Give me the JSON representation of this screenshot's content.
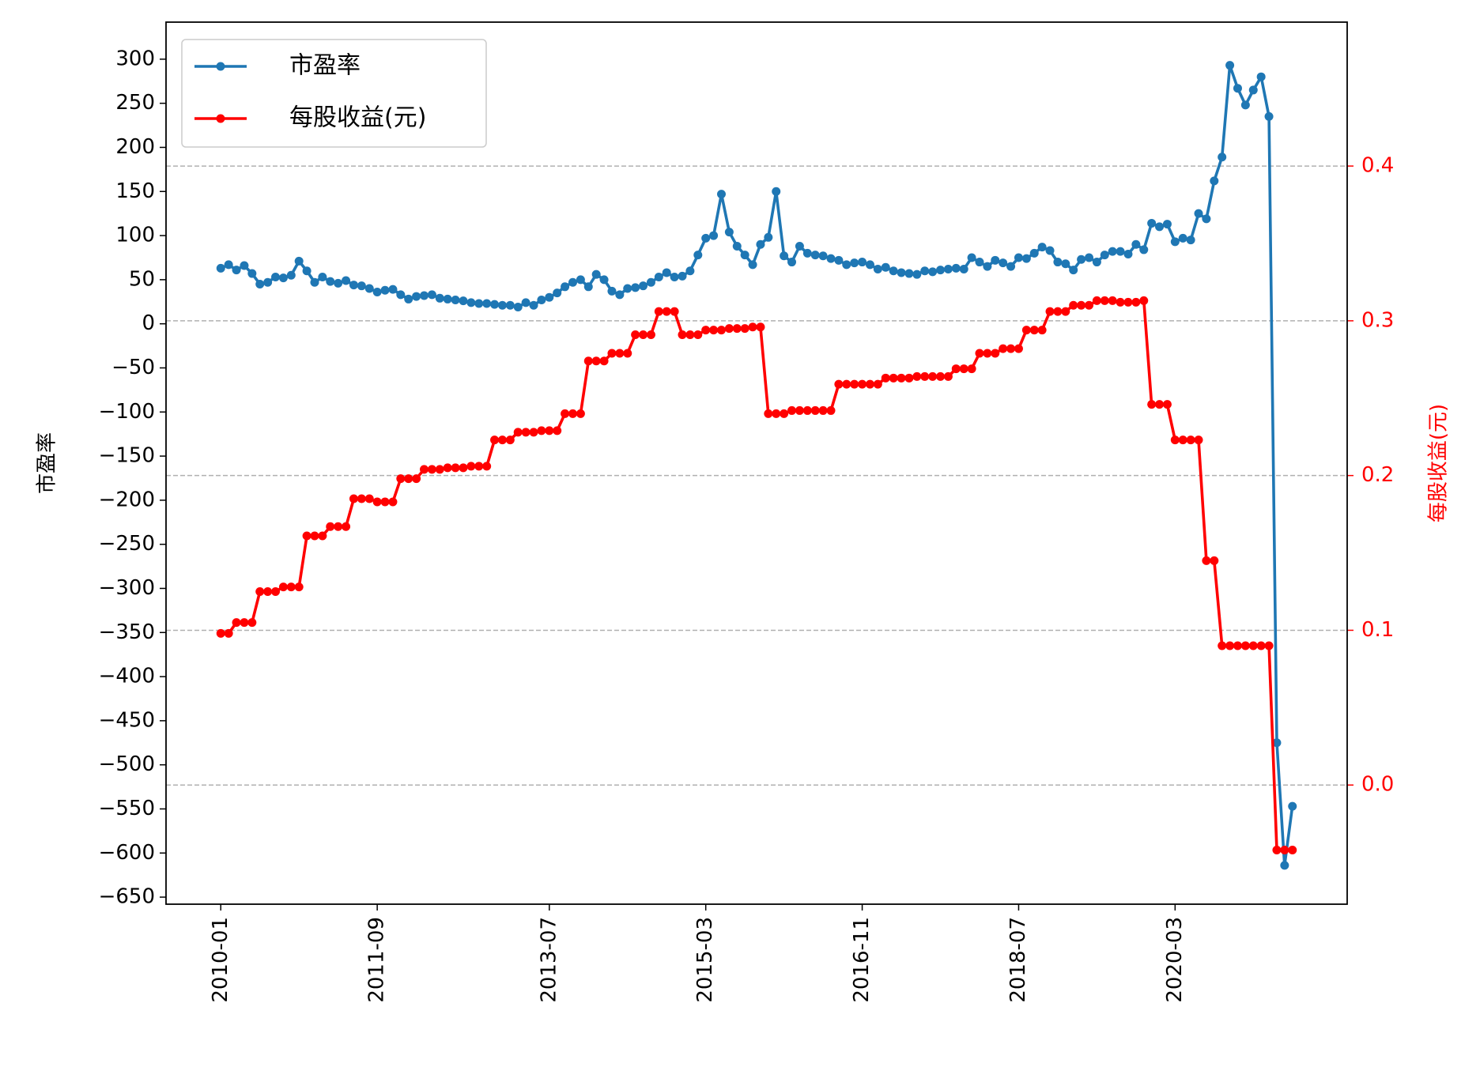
{
  "chart_data": {
    "type": "line",
    "y_label": "市盈率",
    "y2_label": "每股收益(元)",
    "x": [
      "2010-01",
      "2010-02",
      "2010-03",
      "2010-04",
      "2010-05",
      "2010-06",
      "2010-07",
      "2010-08",
      "2010-09",
      "2010-10",
      "2010-11",
      "2010-12",
      "2011-01",
      "2011-02",
      "2011-03",
      "2011-04",
      "2011-05",
      "2011-06",
      "2011-07",
      "2011-08",
      "2011-09",
      "2011-10",
      "2011-11",
      "2011-12",
      "2012-01",
      "2012-02",
      "2012-03",
      "2012-04",
      "2012-05",
      "2012-06",
      "2012-07",
      "2012-08",
      "2012-09",
      "2012-10",
      "2012-11",
      "2012-12",
      "2013-01",
      "2013-02",
      "2013-03",
      "2013-04",
      "2013-05",
      "2013-06",
      "2013-07",
      "2013-08",
      "2013-09",
      "2013-10",
      "2013-11",
      "2013-12",
      "2014-01",
      "2014-02",
      "2014-03",
      "2014-04",
      "2014-05",
      "2014-06",
      "2014-07",
      "2014-08",
      "2014-09",
      "2014-10",
      "2014-11",
      "2014-12",
      "2015-01",
      "2015-02",
      "2015-03",
      "2015-04",
      "2015-05",
      "2015-06",
      "2015-07",
      "2015-08",
      "2015-09",
      "2015-10",
      "2015-11",
      "2015-12",
      "2016-01",
      "2016-02",
      "2016-03",
      "2016-04",
      "2016-05",
      "2016-06",
      "2016-07",
      "2016-08",
      "2016-09",
      "2016-10",
      "2016-11",
      "2016-12",
      "2017-01",
      "2017-02",
      "2017-03",
      "2017-04",
      "2017-05",
      "2017-06",
      "2017-07",
      "2017-08",
      "2017-09",
      "2017-10",
      "2017-11",
      "2017-12",
      "2018-01",
      "2018-02",
      "2018-03",
      "2018-04",
      "2018-05",
      "2018-06",
      "2018-07",
      "2018-08",
      "2018-09",
      "2018-10",
      "2018-11",
      "2018-12",
      "2019-01",
      "2019-02",
      "2019-03",
      "2019-04",
      "2019-05",
      "2019-06",
      "2019-07",
      "2019-08",
      "2019-09",
      "2019-10",
      "2019-11",
      "2019-12",
      "2020-01",
      "2020-02",
      "2020-03",
      "2020-04",
      "2020-05",
      "2020-06",
      "2020-07",
      "2020-08",
      "2020-09",
      "2020-10",
      "2020-11",
      "2020-12",
      "2021-01",
      "2021-02",
      "2021-03",
      "2021-04",
      "2021-05",
      "2021-06"
    ],
    "series": [
      {
        "name": "市盈率",
        "color": "#1f77b4",
        "axis": "y",
        "values": [
          63,
          67,
          61,
          66,
          57,
          45,
          47,
          53,
          52,
          55,
          71,
          60,
          47,
          53,
          48,
          46,
          49,
          44,
          43,
          40,
          36,
          38,
          39,
          33,
          28,
          31,
          32,
          33,
          29,
          28,
          27,
          26,
          24,
          23,
          23,
          22,
          21,
          21,
          19,
          24,
          21,
          27,
          30,
          35,
          42,
          47,
          50,
          42,
          56,
          50,
          37,
          33,
          40,
          41,
          43,
          47,
          53,
          58,
          53,
          54,
          60,
          78,
          97,
          100,
          147,
          104,
          88,
          78,
          67,
          90,
          98,
          150,
          77,
          70,
          88,
          80,
          78,
          77,
          74,
          72,
          67,
          69,
          70,
          67,
          62,
          64,
          60,
          58,
          57,
          56,
          60,
          59,
          61,
          62,
          63,
          62,
          75,
          70,
          65,
          72,
          69,
          65,
          75,
          74,
          80,
          87,
          83,
          70,
          68,
          61,
          73,
          75,
          70,
          78,
          82,
          82,
          79,
          90,
          84,
          114,
          110,
          113,
          93,
          97,
          95,
          125,
          119,
          162,
          189,
          293,
          267,
          248,
          265,
          280,
          235,
          -475,
          -614,
          -547
        ]
      },
      {
        "name": "每股收益(元)",
        "color": "#ff0000",
        "axis": "y2",
        "values": [
          0.098,
          0.098,
          0.105,
          0.105,
          0.105,
          0.125,
          0.125,
          0.125,
          0.128,
          0.128,
          0.128,
          0.161,
          0.161,
          0.161,
          0.167,
          0.167,
          0.167,
          0.185,
          0.185,
          0.185,
          0.183,
          0.183,
          0.183,
          0.198,
          0.198,
          0.198,
          0.204,
          0.204,
          0.204,
          0.205,
          0.205,
          0.205,
          0.206,
          0.206,
          0.206,
          0.223,
          0.223,
          0.223,
          0.228,
          0.228,
          0.228,
          0.229,
          0.229,
          0.229,
          0.24,
          0.24,
          0.24,
          0.274,
          0.274,
          0.274,
          0.279,
          0.279,
          0.279,
          0.291,
          0.291,
          0.291,
          0.306,
          0.306,
          0.306,
          0.291,
          0.291,
          0.291,
          0.294,
          0.294,
          0.294,
          0.295,
          0.295,
          0.295,
          0.296,
          0.296,
          0.24,
          0.24,
          0.24,
          0.242,
          0.242,
          0.242,
          0.242,
          0.242,
          0.242,
          0.259,
          0.259,
          0.259,
          0.259,
          0.259,
          0.259,
          0.263,
          0.263,
          0.263,
          0.263,
          0.264,
          0.264,
          0.264,
          0.264,
          0.264,
          0.269,
          0.269,
          0.269,
          0.279,
          0.279,
          0.279,
          0.282,
          0.282,
          0.282,
          0.294,
          0.294,
          0.294,
          0.306,
          0.306,
          0.306,
          0.31,
          0.31,
          0.31,
          0.313,
          0.313,
          0.313,
          0.312,
          0.312,
          0.312,
          0.313,
          0.246,
          0.246,
          0.246,
          0.223,
          0.223,
          0.223,
          0.223,
          0.145,
          0.145,
          0.09,
          0.09,
          0.09,
          0.09,
          0.09,
          0.09,
          0.09,
          -0.042,
          -0.042,
          -0.042
        ]
      }
    ],
    "xlim": [
      "2009-06",
      "2022-01"
    ],
    "xticks": [
      "2010-01",
      "2011-09",
      "2013-07",
      "2015-03",
      "2016-11",
      "2018-07",
      "2020-03"
    ],
    "ylim": [
      -658,
      342
    ],
    "yticks": [
      {
        "value": 300,
        "label": "300"
      },
      {
        "value": 250,
        "label": "250"
      },
      {
        "value": 200,
        "label": "200"
      },
      {
        "value": 150,
        "label": "150"
      },
      {
        "value": 100,
        "label": "100"
      },
      {
        "value": 50,
        "label": "50"
      },
      {
        "value": 0,
        "label": "0"
      },
      {
        "value": -50,
        "label": "−50"
      },
      {
        "value": -100,
        "label": "−100"
      },
      {
        "value": -150,
        "label": "−150"
      },
      {
        "value": -200,
        "label": "−200"
      },
      {
        "value": -250,
        "label": "−250"
      },
      {
        "value": -300,
        "label": "−300"
      },
      {
        "value": -350,
        "label": "−350"
      },
      {
        "value": -400,
        "label": "−400"
      },
      {
        "value": -450,
        "label": "−450"
      },
      {
        "value": -500,
        "label": "−500"
      },
      {
        "value": -550,
        "label": "−550"
      },
      {
        "value": -600,
        "label": "−600"
      },
      {
        "value": -650,
        "label": "−650"
      }
    ],
    "y2lim": [
      -0.077,
      0.493
    ],
    "y2ticks": [
      {
        "value": 0,
        "label": "0.0"
      },
      0.1,
      0.2,
      0.3,
      0.4
    ],
    "y2_color": "#ff0000",
    "grid": "y2",
    "legend": "upper left"
  }
}
